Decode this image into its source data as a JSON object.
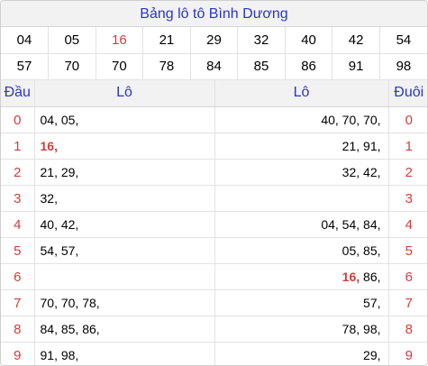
{
  "title": "Bảng lô tô Bình Dương",
  "numbers_row1": [
    "04",
    "05",
    "16",
    "21",
    "29",
    "32",
    "40",
    "42",
    "54"
  ],
  "numbers_row2": [
    "57",
    "70",
    "70",
    "78",
    "84",
    "85",
    "86",
    "91",
    "98"
  ],
  "highlight_color": "#d43b3b",
  "header_color": "#2a35c9",
  "headers": {
    "dau": "Đầu",
    "lo_left": "Lô",
    "lo_right": "Lô",
    "duoi": "Đuôi"
  },
  "rows": [
    {
      "dau": "0",
      "left": [
        {
          "t": "04,"
        },
        {
          "t": "05,"
        }
      ],
      "right": [
        {
          "t": "40,"
        },
        {
          "t": "70,"
        },
        {
          "t": "70,"
        }
      ],
      "duoi": "0"
    },
    {
      "dau": "1",
      "left": [
        {
          "t": "16,",
          "hl": true
        }
      ],
      "right": [
        {
          "t": "21,"
        },
        {
          "t": "91,"
        }
      ],
      "duoi": "1"
    },
    {
      "dau": "2",
      "left": [
        {
          "t": "21,"
        },
        {
          "t": "29,"
        }
      ],
      "right": [
        {
          "t": "32,"
        },
        {
          "t": "42,"
        }
      ],
      "duoi": "2"
    },
    {
      "dau": "3",
      "left": [
        {
          "t": "32,"
        }
      ],
      "right": [],
      "duoi": "3"
    },
    {
      "dau": "4",
      "left": [
        {
          "t": "40,"
        },
        {
          "t": "42,"
        }
      ],
      "right": [
        {
          "t": "04,"
        },
        {
          "t": "54,"
        },
        {
          "t": "84,"
        }
      ],
      "duoi": "4"
    },
    {
      "dau": "5",
      "left": [
        {
          "t": "54,"
        },
        {
          "t": "57,"
        }
      ],
      "right": [
        {
          "t": "05,"
        },
        {
          "t": "85,"
        }
      ],
      "duoi": "5"
    },
    {
      "dau": "6",
      "left": [],
      "right": [
        {
          "t": "16,",
          "hl": true
        },
        {
          "t": "86,"
        }
      ],
      "duoi": "6"
    },
    {
      "dau": "7",
      "left": [
        {
          "t": "70,"
        },
        {
          "t": "70,"
        },
        {
          "t": "78,"
        }
      ],
      "right": [
        {
          "t": "57,"
        }
      ],
      "duoi": "7"
    },
    {
      "dau": "8",
      "left": [
        {
          "t": "84,"
        },
        {
          "t": "85,"
        },
        {
          "t": "86,"
        }
      ],
      "right": [
        {
          "t": "78,"
        },
        {
          "t": "98,"
        }
      ],
      "duoi": "8"
    },
    {
      "dau": "9",
      "left": [
        {
          "t": "91,"
        },
        {
          "t": "98,"
        }
      ],
      "right": [
        {
          "t": "29,"
        }
      ],
      "duoi": "9"
    }
  ]
}
